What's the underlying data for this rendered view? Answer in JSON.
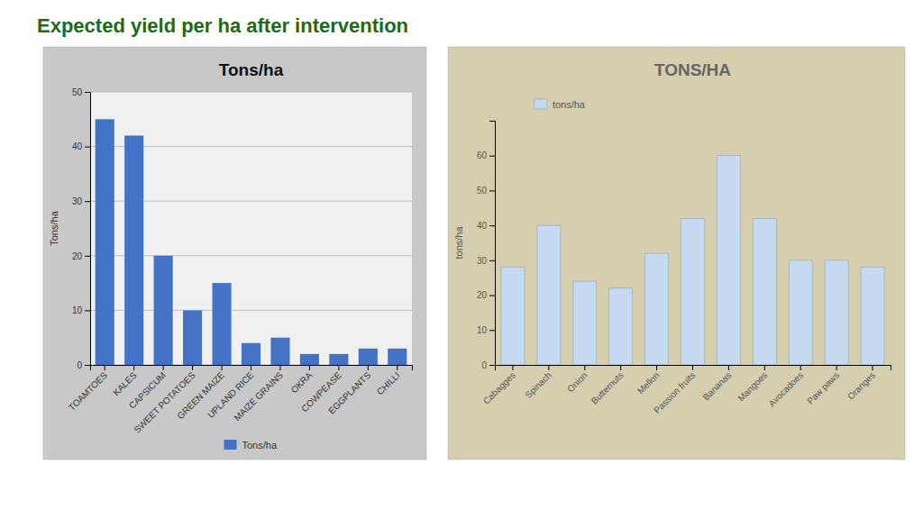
{
  "title": "Expected yield per ha after intervention",
  "chart_data": [
    {
      "type": "bar",
      "title": "Tons/ha",
      "ylabel": "Tons/ha",
      "categories": [
        "TOAMTOES",
        "KALES",
        "CAPSICUM",
        "SWEET POTATOES",
        "GREEN MAIZE",
        "UPLAND RICE",
        "MAIZE GRAINS",
        "OKRA",
        "COWPEASE",
        "EGGPLANTS",
        "CHILLI"
      ],
      "series": [
        {
          "name": "Tons/ha",
          "color": "#4472c4",
          "values": [
            45,
            42,
            20,
            10,
            15,
            4,
            5,
            2,
            2,
            3,
            3
          ]
        }
      ],
      "ylim": [
        0,
        50
      ],
      "yticks": [
        0,
        10,
        20,
        30,
        40,
        50
      ],
      "grid": true,
      "legend": "bottom"
    },
    {
      "type": "bar",
      "title": "TONS/HA",
      "ylabel": "tons/ha",
      "categories": [
        "Cabagges",
        "Spinach",
        "Onion",
        "Butternuts",
        "Mellon",
        "Passion fruits",
        "Bananas",
        "Mangoes",
        "Avocadoes",
        "Paw paws",
        "Oranges"
      ],
      "series": [
        {
          "name": "tons/ha",
          "color": "#c5d9f1",
          "values": [
            28,
            40,
            24,
            22,
            32,
            42,
            60,
            42,
            30,
            30,
            28
          ]
        }
      ],
      "ylim": [
        0,
        70
      ],
      "yticks": [
        0,
        10,
        20,
        30,
        40,
        50,
        60
      ],
      "grid": false,
      "legend": "top"
    }
  ]
}
